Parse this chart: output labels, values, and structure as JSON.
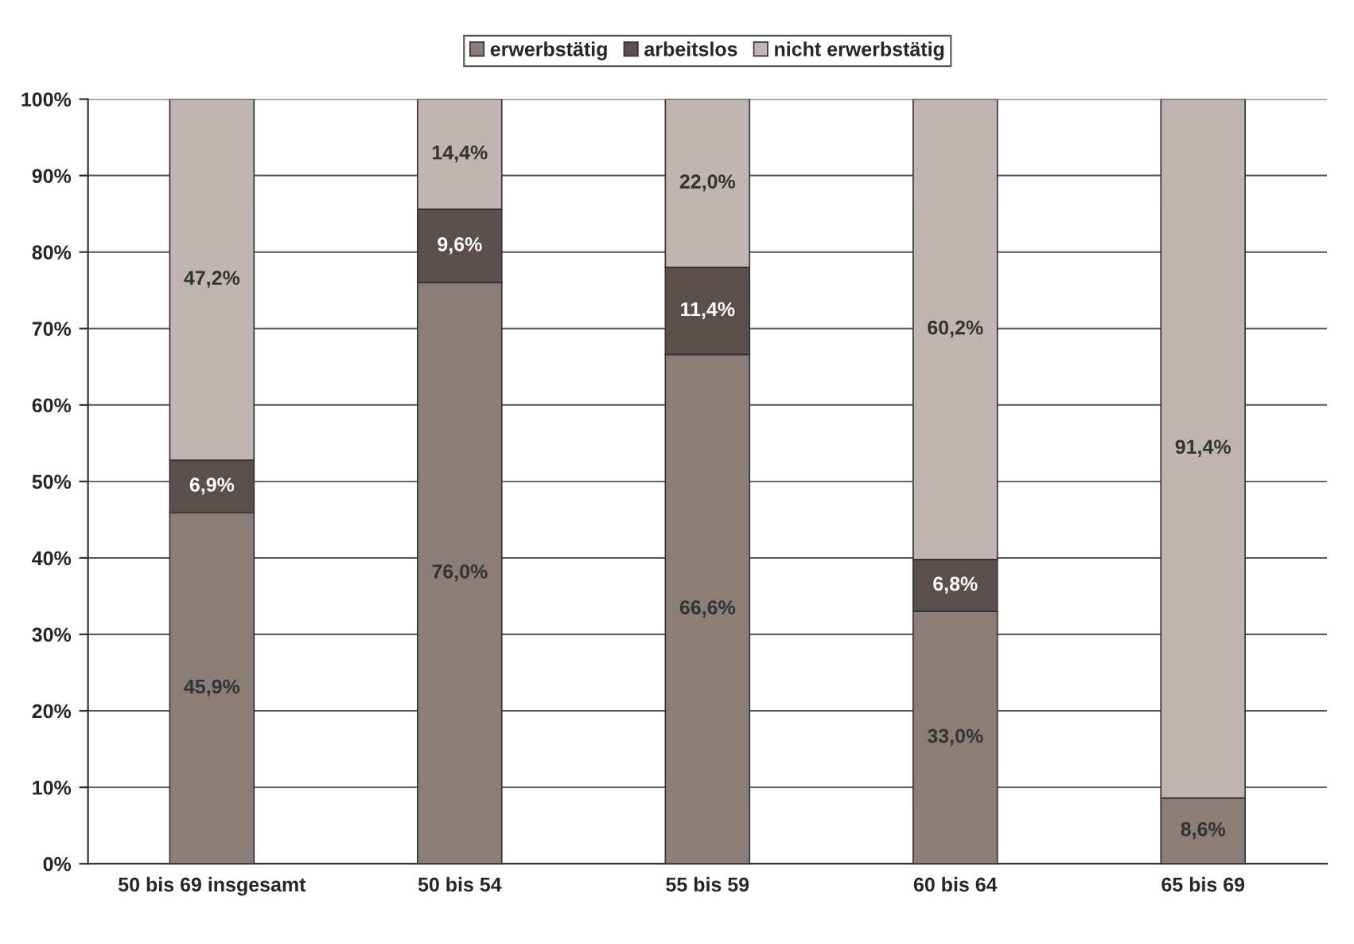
{
  "chart_data": {
    "type": "bar",
    "stacked": true,
    "categories": [
      "50 bis 69 insgesamt",
      "50 bis 54",
      "55 bis 59",
      "60 bis 64",
      "65 bis 69"
    ],
    "series": [
      {
        "name": "erwerbstätig",
        "color": "#8b7e79",
        "values": [
          45.9,
          76.0,
          66.6,
          33.0,
          8.6
        ],
        "value_labels": [
          "45,9%",
          "76,0%",
          "66,6%",
          "33,0%",
          "8,6%"
        ]
      },
      {
        "name": "arbeitslos",
        "color": "#5a4f4c",
        "values": [
          6.9,
          9.6,
          11.4,
          6.8,
          null
        ],
        "value_labels": [
          "6,9%",
          "9,6%",
          "11,4%",
          "6,8%",
          null
        ]
      },
      {
        "name": "nicht erwerbstätig",
        "color": "#bfb5b2",
        "values": [
          47.2,
          14.4,
          22.0,
          60.2,
          91.4
        ],
        "value_labels": [
          "47,2%",
          "14,4%",
          "22,0%",
          "60,2%",
          "91,4%"
        ]
      }
    ],
    "ylim": [
      0,
      100
    ],
    "yticks": [
      {
        "value": 0,
        "label": "0%"
      },
      {
        "value": 10,
        "label": "10%"
      },
      {
        "value": 20,
        "label": "20%"
      },
      {
        "value": 30,
        "label": "30%"
      },
      {
        "value": 40,
        "label": "40%"
      },
      {
        "value": 50,
        "label": "50%"
      },
      {
        "value": 60,
        "label": "60%"
      },
      {
        "value": 70,
        "label": "70%"
      },
      {
        "value": 80,
        "label": "80%"
      },
      {
        "value": 90,
        "label": "90%"
      },
      {
        "value": 100,
        "label": "100%"
      }
    ],
    "grid": "y",
    "legend": "top"
  }
}
